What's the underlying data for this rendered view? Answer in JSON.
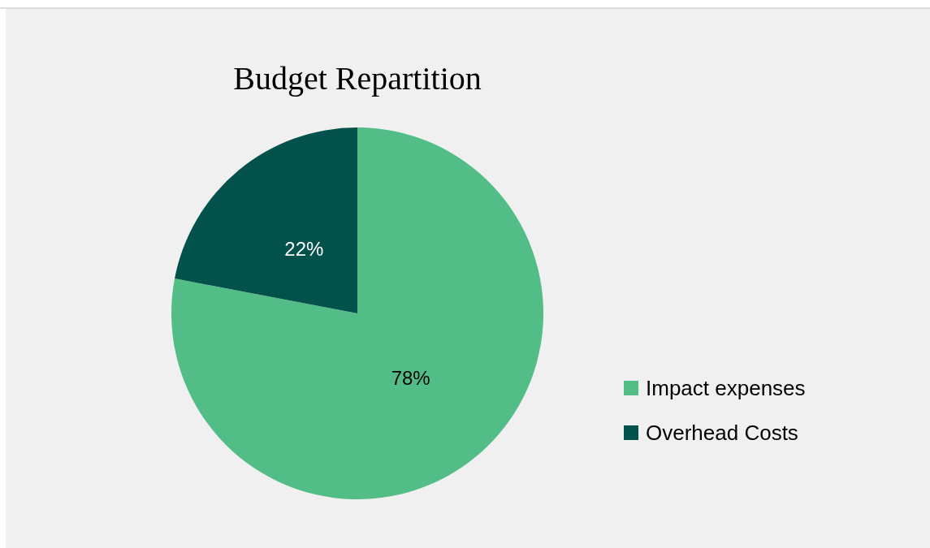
{
  "chart_data": {
    "type": "pie",
    "title": "Budget Repartition",
    "categories": [
      "Impact expenses",
      "Overhead Costs"
    ],
    "values": [
      78,
      22
    ],
    "colors": [
      "#52bd86",
      "#02514a"
    ],
    "value_labels": [
      "78%",
      "22%"
    ],
    "legend": "right"
  }
}
